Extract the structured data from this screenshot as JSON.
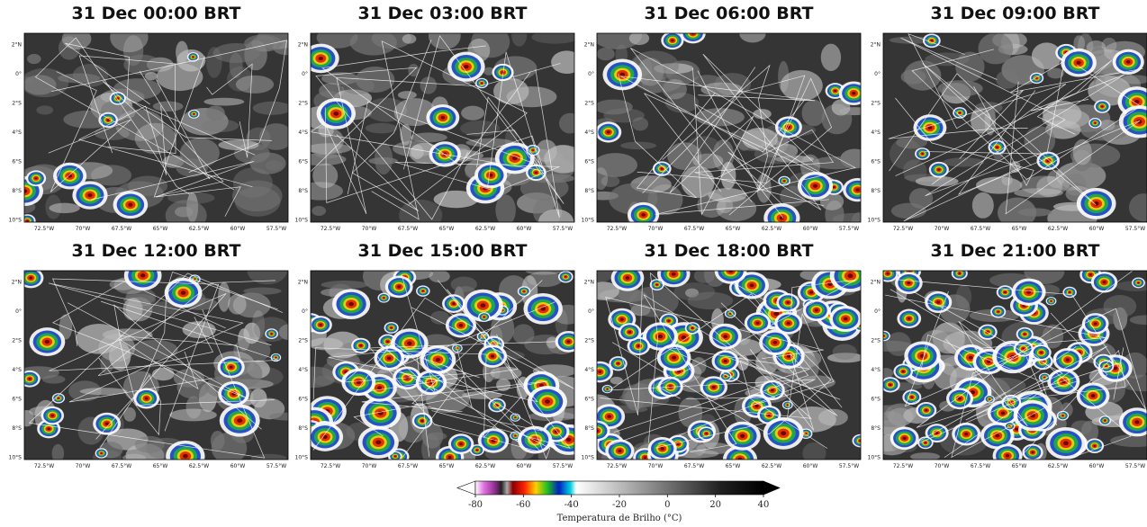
{
  "panels": [
    {
      "title": "31 Dec 00:00 BRT"
    },
    {
      "title": "31 Dec 03:00 BRT"
    },
    {
      "title": "31 Dec 06:00 BRT"
    },
    {
      "title": "31 Dec 09:00 BRT"
    },
    {
      "title": "31 Dec 12:00 BRT"
    },
    {
      "title": "31 Dec 15:00 BRT"
    },
    {
      "title": "31 Dec 18:00 BRT"
    },
    {
      "title": "31 Dec 21:00 BRT"
    }
  ],
  "axes": {
    "lat_ticks": [
      "2°N",
      "0°",
      "2°S",
      "4°S",
      "6°S",
      "8°S",
      "10°S"
    ],
    "lon_ticks": [
      "72.5°W",
      "70°W",
      "67.5°W",
      "65°W",
      "62.5°W",
      "60°W",
      "57.5°W"
    ]
  },
  "colorbar": {
    "lim": [
      -80,
      40
    ],
    "ticks": [
      -80,
      -60,
      -40,
      -20,
      0,
      20,
      40
    ],
    "label": "Temperatura de Brilho (°C)"
  }
}
